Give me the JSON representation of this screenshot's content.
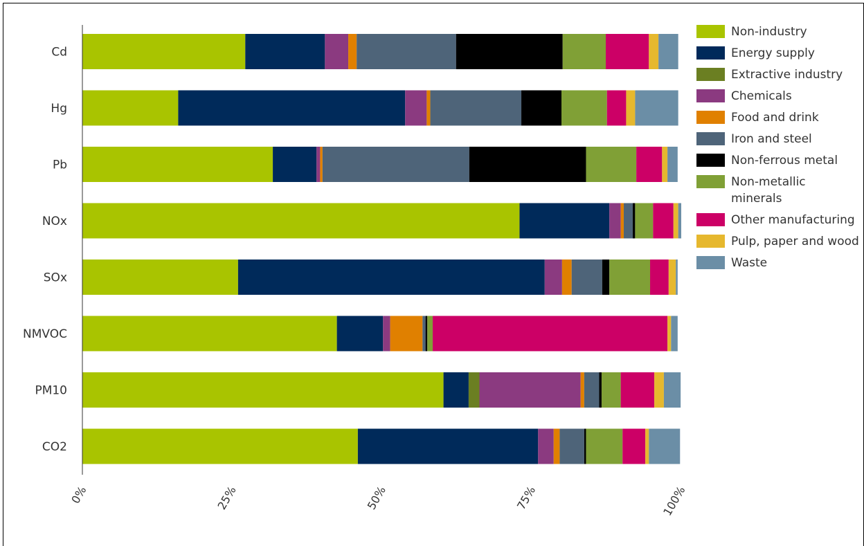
{
  "chart_data": {
    "type": "bar",
    "orientation": "horizontal",
    "stacked": true,
    "categories": [
      "Cd",
      "Hg",
      "Pb",
      "NOx",
      "SOx",
      "NMVOC",
      "PM10",
      "CO2"
    ],
    "xlim": [
      0,
      100
    ],
    "x_ticks": [
      "0%",
      "25%",
      "50%",
      "75%",
      "100%"
    ],
    "legend_position": "right",
    "series": [
      {
        "name": "Non-industry",
        "color": "#a9c400",
        "values": [
          27.2,
          16.0,
          31.8,
          73.0,
          26.0,
          42.5,
          60.3,
          46.0
        ]
      },
      {
        "name": "Energy supply",
        "color": "#002a5a",
        "values": [
          13.3,
          37.9,
          7.3,
          15.0,
          51.2,
          7.7,
          4.2,
          30.1
        ]
      },
      {
        "name": "Extractive industry",
        "color": "#6b7f22",
        "values": [
          0,
          0,
          0,
          0,
          0,
          0,
          1.8,
          0
        ]
      },
      {
        "name": "Chemicals",
        "color": "#8b3a80",
        "values": [
          3.9,
          3.6,
          0.6,
          1.9,
          2.9,
          1.2,
          16.9,
          2.6
        ]
      },
      {
        "name": "Food and drink",
        "color": "#e08000",
        "values": [
          1.4,
          0.6,
          0.4,
          0.5,
          1.6,
          5.4,
          0.6,
          1.0
        ]
      },
      {
        "name": "Iron and steel",
        "color": "#4e6479",
        "values": [
          16.6,
          15.2,
          24.5,
          1.5,
          5.1,
          0.5,
          2.5,
          4.1
        ]
      },
      {
        "name": "Non-ferrous metal",
        "color": "#000000",
        "values": [
          17.8,
          6.7,
          19.5,
          0.4,
          1.2,
          0.3,
          0.4,
          0.3
        ]
      },
      {
        "name": "Non-metallic minerals",
        "color": "#80a036",
        "values": [
          7.2,
          7.6,
          8.4,
          3.0,
          6.8,
          0.9,
          3.2,
          6.1
        ]
      },
      {
        "name": "Other manufacturing",
        "color": "#cc0066",
        "values": [
          7.2,
          3.2,
          4.3,
          3.4,
          3.1,
          39.2,
          5.6,
          3.8
        ]
      },
      {
        "name": "Pulp, paper and wood",
        "color": "#e6b82e",
        "values": [
          1.6,
          1.5,
          0.9,
          0.8,
          1.2,
          0.6,
          1.6,
          0.6
        ]
      },
      {
        "name": "Waste",
        "color": "#6b8ea6",
        "values": [
          3.3,
          7.2,
          1.7,
          0.5,
          0.3,
          1.1,
          2.8,
          5.2
        ]
      }
    ]
  }
}
